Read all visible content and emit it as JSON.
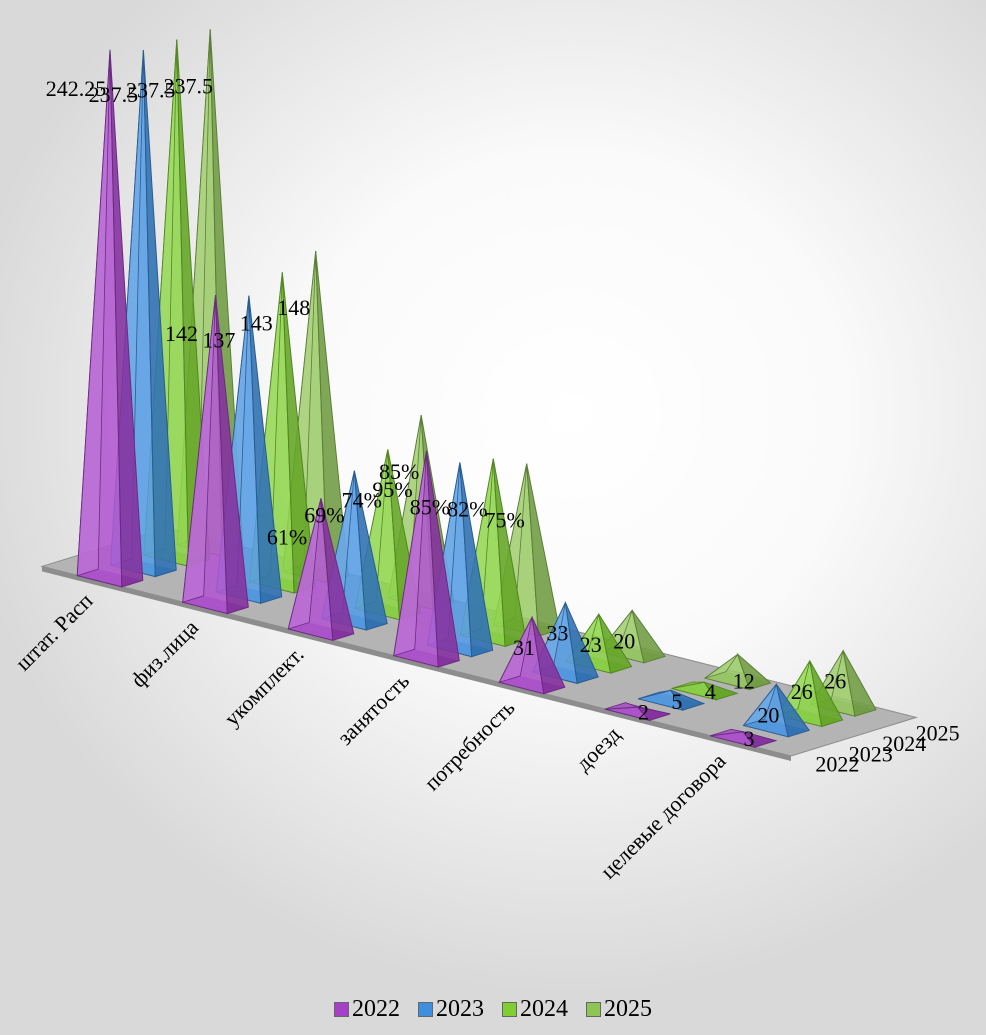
{
  "chart_data": {
    "type": "bar",
    "subtype": "3d-pyramid",
    "title": "",
    "categories": [
      "штат. Расп",
      "физ.лица",
      "укомплект.",
      "занятость",
      "потребность",
      "доезд",
      "целевые договора"
    ],
    "series": [
      {
        "name": "2022",
        "color": "#a640c8",
        "values": [
          242.25,
          142,
          61,
          95,
          31,
          2,
          3
        ],
        "labels": [
          "242.25",
          "142",
          "61%",
          "95%",
          "31",
          "2",
          "3"
        ]
      },
      {
        "name": "2023",
        "color": "#3f8fe0",
        "values": [
          237.5,
          137,
          69,
          85,
          33,
          5,
          20
        ],
        "labels": [
          "237.5",
          "137",
          "69%",
          "85%",
          "33",
          "5",
          "20"
        ]
      },
      {
        "name": "2024",
        "color": "#7fcf32",
        "values": [
          237.5,
          143,
          74,
          82,
          23,
          4,
          26
        ],
        "labels": [
          "237.5",
          "143",
          "74%",
          "82%",
          "23",
          "4",
          "26"
        ]
      },
      {
        "name": "2025",
        "color": "#8fc456",
        "values": [
          237.5,
          148,
          85,
          75,
          20,
          12,
          26
        ],
        "labels": [
          "237.5",
          "148",
          "85%",
          "75%",
          "20",
          "12",
          "26"
        ]
      }
    ],
    "depth_axis_labels": [
      "2022",
      "2023",
      "2024",
      "2025"
    ],
    "legend_position": "bottom",
    "grid": false
  }
}
